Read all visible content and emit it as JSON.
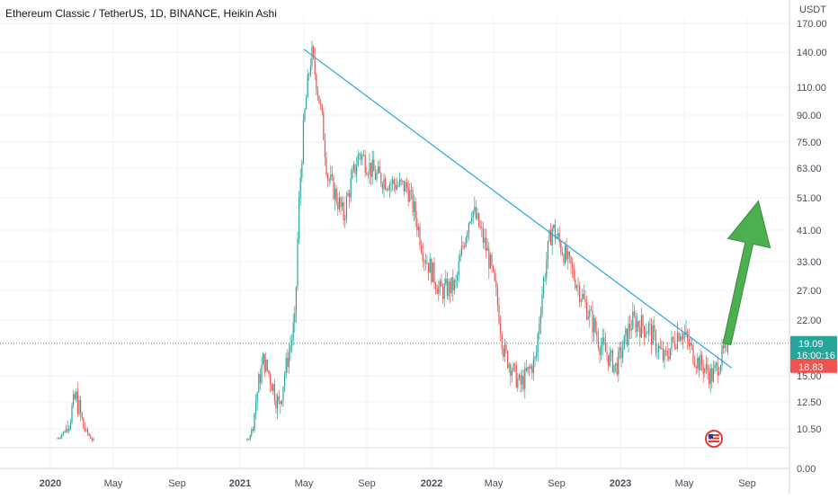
{
  "header": {
    "title": "Ethereum Classic / TetherUS, 1D, BINANCE, Heikin Ashi"
  },
  "colors": {
    "up": "#26a69a",
    "down": "#ef5350",
    "trendline": "#2aa4e4",
    "arrow": "#4caf50",
    "price_line": "#26a69a",
    "grid": "#f0f3fa"
  },
  "icons": {
    "flag": "us-flag-icon"
  },
  "chart_data": {
    "type": "candlestick",
    "symbol": "Ethereum Classic / TetherUS",
    "interval": "1D",
    "exchange": "BINANCE",
    "style": "Heikin Ashi",
    "y_unit": "USDT",
    "ylim": [
      0,
      170
    ],
    "y_scale": "log",
    "y_ticks": [
      "170.00",
      "140.00",
      "110.00",
      "90.00",
      "75.00",
      "63.00",
      "51.00",
      "41.00",
      "33.00",
      "27.00",
      "22.00",
      "15.00",
      "12.50",
      "10.50",
      "0.00"
    ],
    "x_ticks": [
      "2020",
      "May",
      "Sep",
      "2021",
      "May",
      "Sep",
      "2022",
      "May",
      "Sep",
      "2023",
      "May",
      "Sep"
    ],
    "last_price": "19.09",
    "countdown": "16:00:16",
    "prev_close": "18.83",
    "grid": true,
    "series": [
      {
        "type": "candlestick",
        "points": [
          {
            "date": "2020-01",
            "value": 8
          },
          {
            "date": "2020-02",
            "value": 13
          },
          {
            "date": "2020-03",
            "value": 7
          },
          {
            "date": "2021-01",
            "value": 7.5
          },
          {
            "date": "2021-02",
            "value": 17
          },
          {
            "date": "2021-03",
            "value": 12
          },
          {
            "date": "2021-04",
            "value": 22
          },
          {
            "date": "2021-05",
            "value": 140
          },
          {
            "date": "2021-06",
            "value": 60
          },
          {
            "date": "2021-07",
            "value": 45
          },
          {
            "date": "2021-08",
            "value": 70
          },
          {
            "date": "2021-09",
            "value": 60
          },
          {
            "date": "2021-10",
            "value": 57
          },
          {
            "date": "2021-11",
            "value": 55
          },
          {
            "date": "2021-12",
            "value": 35
          },
          {
            "date": "2022-01",
            "value": 27
          },
          {
            "date": "2022-02",
            "value": 28
          },
          {
            "date": "2022-03",
            "value": 48
          },
          {
            "date": "2022-04",
            "value": 35
          },
          {
            "date": "2022-05",
            "value": 18
          },
          {
            "date": "2022-06",
            "value": 14
          },
          {
            "date": "2022-07",
            "value": 17
          },
          {
            "date": "2022-08",
            "value": 42
          },
          {
            "date": "2022-09",
            "value": 33
          },
          {
            "date": "2022-10",
            "value": 25
          },
          {
            "date": "2022-11",
            "value": 19
          },
          {
            "date": "2022-12",
            "value": 16
          },
          {
            "date": "2023-01",
            "value": 22
          },
          {
            "date": "2023-02",
            "value": 21
          },
          {
            "date": "2023-03",
            "value": 17
          },
          {
            "date": "2023-04",
            "value": 21
          },
          {
            "date": "2023-05",
            "value": 17
          },
          {
            "date": "2023-06",
            "value": 15
          },
          {
            "date": "2023-07",
            "value": 19
          }
        ]
      }
    ],
    "annotations": [
      {
        "type": "trendline",
        "from": {
          "date": "2021-05",
          "value": 143
        },
        "to": {
          "date": "2023-08",
          "value": 16
        }
      },
      {
        "type": "arrow",
        "direction": "up",
        "from": {
          "date": "2023-06",
          "value": 19
        },
        "to": {
          "date": "2023-08",
          "value": 50
        }
      }
    ]
  }
}
